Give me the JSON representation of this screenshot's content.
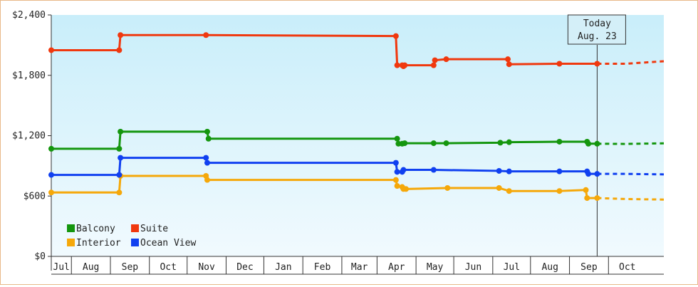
{
  "chart_data": {
    "type": "line",
    "title": "",
    "xlabel": "",
    "ylabel": "",
    "ylim": [
      0,
      2400
    ],
    "y_ticks": [
      "$0",
      "$600",
      "$1,200",
      "$1,800",
      "$2,400"
    ],
    "x_tick_labels": [
      "Jul",
      "Aug",
      "Sep",
      "Oct",
      "Nov",
      "Dec",
      "Jan",
      "Feb",
      "Mar",
      "Apr",
      "May",
      "Jun",
      "Jul",
      "Aug",
      "Sep",
      "Oct"
    ],
    "x_domain": [
      "2022-06-15",
      "2023-10-15"
    ],
    "today_marker": {
      "line1": "Today",
      "line2": "Aug. 23",
      "date": "2023-08-23"
    },
    "legend_placement": "bottom-left",
    "series": [
      {
        "name": "Balcony",
        "color": "#14960e",
        "values": [
          [
            "2022-06-15",
            1070
          ],
          [
            "2022-08-08",
            1070
          ],
          [
            "2022-08-09",
            1240
          ],
          [
            "2022-10-17",
            1240
          ],
          [
            "2022-10-18",
            1170
          ],
          [
            "2023-03-17",
            1170
          ],
          [
            "2023-03-18",
            1120
          ],
          [
            "2023-03-21",
            1120
          ],
          [
            "2023-03-23",
            1125
          ],
          [
            "2023-04-15",
            1125
          ],
          [
            "2023-04-25",
            1125
          ],
          [
            "2023-06-07",
            1130
          ],
          [
            "2023-06-14",
            1135
          ],
          [
            "2023-07-24",
            1140
          ],
          [
            "2023-08-15",
            1140
          ],
          [
            "2023-08-16",
            1120
          ],
          [
            "2023-08-23",
            1120
          ]
        ],
        "projection": [
          [
            "2023-08-23",
            1120
          ],
          [
            "2023-09-15",
            1118
          ],
          [
            "2023-10-15",
            1124
          ]
        ]
      },
      {
        "name": "Suite",
        "color": "#f0380e",
        "values": [
          [
            "2022-06-15",
            2050
          ],
          [
            "2022-08-08",
            2050
          ],
          [
            "2022-08-09",
            2200
          ],
          [
            "2022-10-16",
            2200
          ],
          [
            "2023-03-16",
            2190
          ],
          [
            "2023-03-17",
            1900
          ],
          [
            "2023-03-21",
            1900
          ],
          [
            "2023-03-22",
            1890
          ],
          [
            "2023-03-23",
            1900
          ],
          [
            "2023-04-15",
            1900
          ],
          [
            "2023-04-16",
            1950
          ],
          [
            "2023-04-25",
            1960
          ],
          [
            "2023-06-13",
            1960
          ],
          [
            "2023-06-14",
            1910
          ],
          [
            "2023-07-24",
            1915
          ],
          [
            "2023-08-23",
            1915
          ]
        ],
        "projection": [
          [
            "2023-08-23",
            1915
          ],
          [
            "2023-09-15",
            1915
          ],
          [
            "2023-10-15",
            1940
          ]
        ]
      },
      {
        "name": "Interior",
        "color": "#f5a80a",
        "values": [
          [
            "2022-06-15",
            635
          ],
          [
            "2022-08-08",
            635
          ],
          [
            "2022-08-09",
            800
          ],
          [
            "2022-10-16",
            800
          ],
          [
            "2022-10-17",
            760
          ],
          [
            "2023-03-16",
            760
          ],
          [
            "2023-03-17",
            700
          ],
          [
            "2023-03-21",
            690
          ],
          [
            "2023-03-22",
            670
          ],
          [
            "2023-03-24",
            670
          ],
          [
            "2023-04-26",
            680
          ],
          [
            "2023-06-06",
            680
          ],
          [
            "2023-06-14",
            650
          ],
          [
            "2023-07-24",
            650
          ],
          [
            "2023-08-14",
            660
          ],
          [
            "2023-08-15",
            580
          ],
          [
            "2023-08-23",
            580
          ]
        ],
        "projection": [
          [
            "2023-08-23",
            580
          ],
          [
            "2023-09-15",
            570
          ],
          [
            "2023-10-15",
            565
          ]
        ]
      },
      {
        "name": "Ocean View",
        "color": "#1040f0",
        "values": [
          [
            "2022-06-15",
            810
          ],
          [
            "2022-08-08",
            810
          ],
          [
            "2022-08-09",
            980
          ],
          [
            "2022-10-16",
            980
          ],
          [
            "2022-10-17",
            930
          ],
          [
            "2023-03-16",
            930
          ],
          [
            "2023-03-17",
            840
          ],
          [
            "2023-03-21",
            840
          ],
          [
            "2023-03-22",
            860
          ],
          [
            "2023-04-15",
            860
          ],
          [
            "2023-06-06",
            850
          ],
          [
            "2023-06-14",
            845
          ],
          [
            "2023-07-24",
            845
          ],
          [
            "2023-08-15",
            845
          ],
          [
            "2023-08-16",
            820
          ],
          [
            "2023-08-23",
            820
          ]
        ],
        "projection": [
          [
            "2023-08-23",
            820
          ],
          [
            "2023-09-15",
            820
          ],
          [
            "2023-10-15",
            815
          ]
        ]
      }
    ],
    "legend": [
      {
        "name": "Balcony",
        "color": "#14960e"
      },
      {
        "name": "Suite",
        "color": "#f0380e"
      },
      {
        "name": "Interior",
        "color": "#f5a80a"
      },
      {
        "name": "Ocean View",
        "color": "#1040f0"
      }
    ]
  }
}
